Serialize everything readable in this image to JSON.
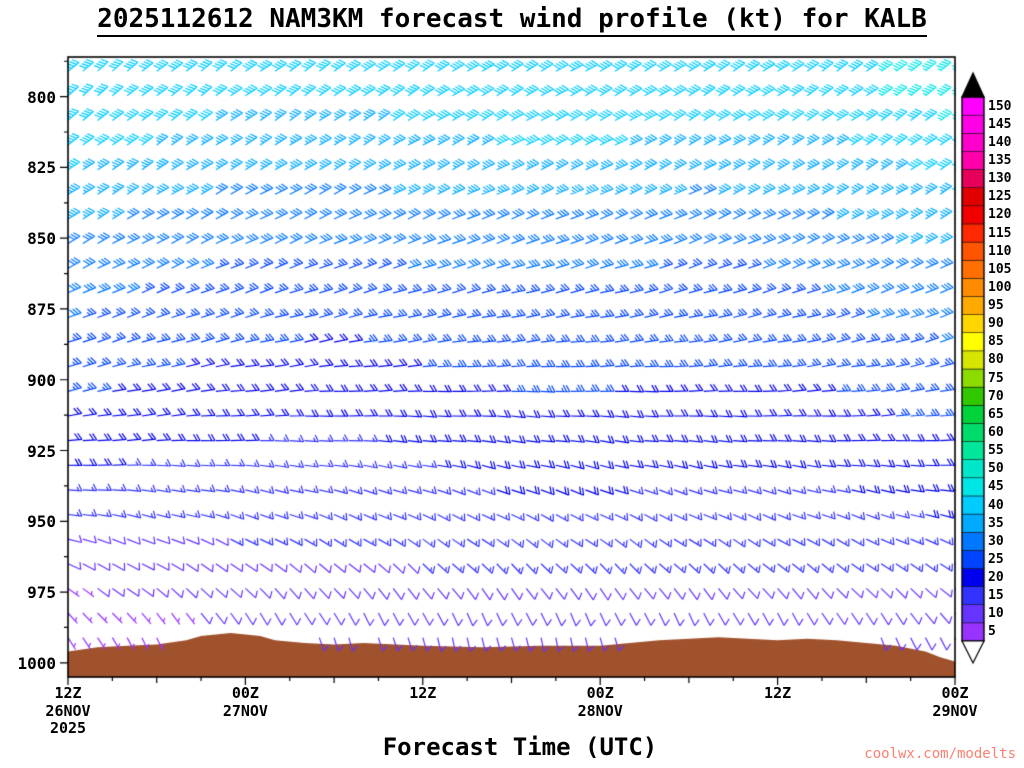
{
  "page": {
    "title": "2025112612 NAM3KM forecast wind profile (kt) for KALB",
    "xaxis_title": "Forecast Time (UTC)",
    "watermark": "coolwx.com/modelts"
  },
  "chart_data": {
    "type": "scatter",
    "variant": "time-height wind barb profile",
    "title": "2025112612 NAM3KM forecast wind profile (kt) for KALB",
    "xlabel": "Forecast Time (UTC)",
    "ylabel": "",
    "units": "kt",
    "station": "KALB",
    "x_hours_range": [
      0,
      60
    ],
    "y_pressure_range": [
      786,
      1005
    ],
    "y_ticks": [
      800,
      825,
      850,
      875,
      900,
      925,
      950,
      975,
      1000
    ],
    "x_ticks": [
      {
        "hour": 0,
        "label": "12Z"
      },
      {
        "hour": 12,
        "label": "00Z"
      },
      {
        "hour": 24,
        "label": "12Z"
      },
      {
        "hour": 36,
        "label": "00Z"
      },
      {
        "hour": 48,
        "label": "12Z"
      },
      {
        "hour": 60,
        "label": "00Z"
      }
    ],
    "x_dates": [
      {
        "hour": 0,
        "label": "26NOV"
      },
      {
        "hour": 12,
        "label": "27NOV"
      },
      {
        "hour": 36,
        "label": "28NOV"
      },
      {
        "hour": 60,
        "label": "29NOV"
      }
    ],
    "x_year": {
      "hour": 0,
      "label": "2025"
    },
    "colorbar": {
      "values": [
        5,
        10,
        15,
        20,
        25,
        30,
        35,
        40,
        45,
        50,
        55,
        60,
        65,
        70,
        75,
        80,
        85,
        90,
        95,
        100,
        105,
        110,
        115,
        120,
        125,
        130,
        135,
        140,
        145,
        150
      ],
      "colors": [
        "#9933FF",
        "#6633FF",
        "#3333FF",
        "#0000EE",
        "#0044FF",
        "#0077FF",
        "#00AAFF",
        "#00CCFF",
        "#00E6E6",
        "#00E6C8",
        "#00E69B",
        "#00DC69",
        "#00D23C",
        "#32C800",
        "#8CDC00",
        "#D7E600",
        "#FFFF00",
        "#FFD700",
        "#FFAA00",
        "#FF8C00",
        "#FF7000",
        "#FF5400",
        "#FF2800",
        "#F00000",
        "#E00000",
        "#E6005A",
        "#FF00AA",
        "#FF00CC",
        "#FF00E6",
        "#FF00FF"
      ],
      "over_color": "#000000",
      "under_color": "#FFFFFF"
    },
    "grid": {
      "times": [
        0,
        6,
        12,
        18,
        24,
        30,
        36,
        42,
        48,
        54,
        60
      ],
      "levels": [
        800,
        825,
        850,
        875,
        900,
        925,
        950,
        975,
        1000
      ],
      "speed_kt": [
        [
          42,
          40,
          38,
          38,
          40,
          42,
          42,
          40,
          40,
          42,
          45
        ],
        [
          38,
          36,
          34,
          34,
          35,
          36,
          36,
          35,
          35,
          36,
          40
        ],
        [
          32,
          30,
          28,
          28,
          30,
          30,
          30,
          28,
          30,
          32,
          35
        ],
        [
          28,
          26,
          25,
          24,
          25,
          26,
          26,
          25,
          25,
          28,
          30
        ],
        [
          24,
          22,
          21,
          20,
          22,
          23,
          23,
          22,
          22,
          24,
          26
        ],
        [
          20,
          18,
          17,
          16,
          18,
          20,
          20,
          19,
          19,
          20,
          22
        ],
        [
          12,
          13,
          14,
          14,
          15,
          16,
          16,
          15,
          15,
          16,
          18
        ],
        [
          7,
          8,
          9,
          10,
          11,
          12,
          12,
          11,
          11,
          12,
          12
        ],
        [
          5,
          5,
          6,
          7,
          8,
          9,
          9,
          8,
          8,
          9,
          9
        ]
      ],
      "dir_from_deg": [
        [
          50,
          52,
          55,
          55,
          58,
          60,
          60,
          58,
          57,
          55,
          52
        ],
        [
          55,
          57,
          60,
          60,
          62,
          64,
          64,
          62,
          60,
          58,
          55
        ],
        [
          60,
          62,
          65,
          66,
          68,
          70,
          70,
          68,
          66,
          64,
          60
        ],
        [
          68,
          70,
          73,
          75,
          77,
          79,
          79,
          77,
          75,
          72,
          68
        ],
        [
          76,
          79,
          82,
          85,
          87,
          89,
          89,
          87,
          85,
          82,
          78
        ],
        [
          85,
          88,
          92,
          95,
          97,
          99,
          99,
          97,
          95,
          92,
          88
        ],
        [
          100,
          105,
          110,
          114,
          117,
          119,
          119,
          117,
          114,
          110,
          105
        ],
        [
          125,
          130,
          136,
          140,
          143,
          145,
          145,
          143,
          140,
          136,
          130
        ],
        [
          160,
          165,
          170,
          174,
          177,
          179,
          179,
          177,
          174,
          170,
          165
        ]
      ]
    },
    "terrain_color": "#A0522D",
    "terrain": [
      [
        0,
        996
      ],
      [
        2,
        994.5
      ],
      [
        4,
        994
      ],
      [
        6,
        993.5
      ],
      [
        8,
        992
      ],
      [
        9,
        990.5
      ],
      [
        10,
        990
      ],
      [
        11,
        989.5
      ],
      [
        12,
        990
      ],
      [
        13,
        990.5
      ],
      [
        14,
        992
      ],
      [
        16,
        993
      ],
      [
        18,
        993.5
      ],
      [
        20,
        993
      ],
      [
        24,
        994
      ],
      [
        28,
        994.5
      ],
      [
        32,
        994
      ],
      [
        36,
        994
      ],
      [
        38,
        993
      ],
      [
        40,
        992
      ],
      [
        42,
        991.5
      ],
      [
        44,
        991
      ],
      [
        46,
        991.5
      ],
      [
        48,
        992
      ],
      [
        50,
        991.5
      ],
      [
        52,
        992
      ],
      [
        54,
        993
      ],
      [
        56,
        994
      ],
      [
        58,
        996
      ],
      [
        59,
        998
      ],
      [
        60,
        999.5
      ]
    ],
    "legend_position": "right",
    "grid_lines": false
  }
}
